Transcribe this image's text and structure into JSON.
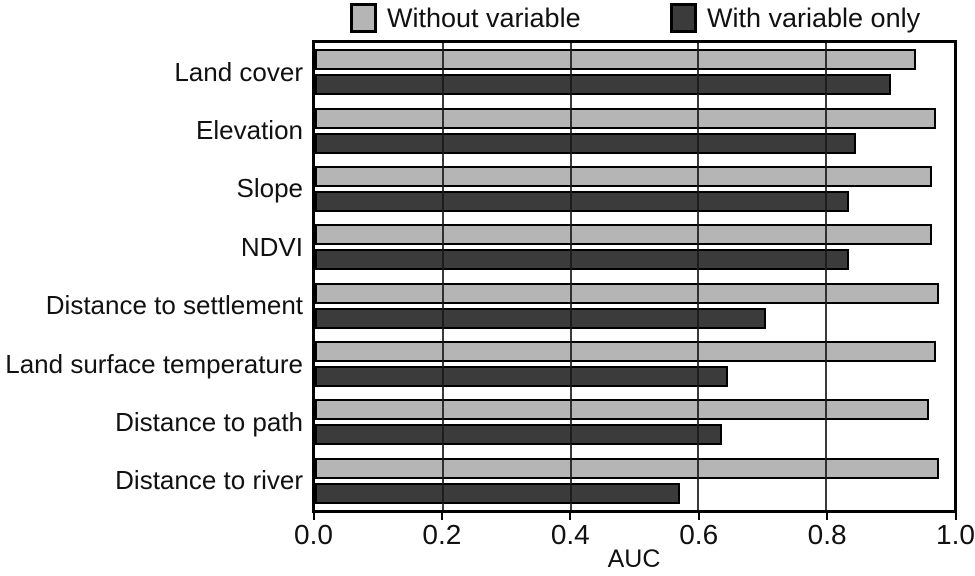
{
  "figure": {
    "background": "#ffffff",
    "legend_position": "top"
  },
  "chart_data": {
    "type": "bar",
    "orientation": "horizontal",
    "title": "",
    "xlabel": "AUC",
    "ylabel": "",
    "xlim": [
      0,
      1
    ],
    "x_tick_values": [
      0.0,
      0.2,
      0.4,
      0.6,
      0.8,
      1.0
    ],
    "x_tick_labels": [
      "0.0",
      "0.2",
      "0.4",
      "0.6",
      "0.8",
      "1.0"
    ],
    "gridlines": {
      "vertical_at": [
        0.2,
        0.4,
        0.6,
        0.8
      ],
      "drawn_over_bars": true
    },
    "categories": [
      "Land cover",
      "Elevation",
      "Slope",
      "NDVI",
      "Distance to settlement",
      "Land surface temperature",
      "Distance to path",
      "Distance to river"
    ],
    "series": [
      {
        "name": "Without variable",
        "color": "#b5b5b5",
        "values": [
          0.935,
          0.965,
          0.96,
          0.96,
          0.97,
          0.965,
          0.955,
          0.97
        ]
      },
      {
        "name": "With variable only",
        "color": "#3b3b3b",
        "values": [
          0.895,
          0.84,
          0.83,
          0.83,
          0.7,
          0.64,
          0.63,
          0.565
        ]
      }
    ]
  }
}
